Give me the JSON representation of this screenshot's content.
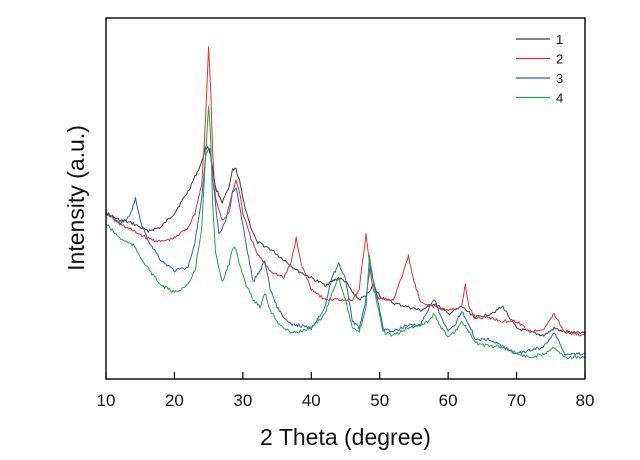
{
  "chart_data": {
    "type": "line",
    "xlabel": "2 Theta (degree)",
    "ylabel": "Intensity (a.u.)",
    "xlim": [
      10,
      80
    ],
    "ylim": [
      0,
      1
    ],
    "x_ticks": [
      10,
      20,
      30,
      40,
      50,
      60,
      70,
      80
    ],
    "x_tick_labels": [
      "10",
      "20",
      "30",
      "40",
      "50",
      "60",
      "70",
      "80"
    ],
    "y_ticks_labeled": false,
    "grid": false,
    "legend_position": "top-right",
    "series": [
      {
        "name": "1",
        "color": "#3f3f3f",
        "x": [
          10,
          12,
          14,
          16,
          18,
          20,
          22,
          23,
          24,
          24.5,
          25,
          25.3,
          25.6,
          26,
          27,
          28,
          28.5,
          29,
          29.5,
          30,
          31,
          32,
          34,
          36,
          38,
          40,
          42,
          43,
          44,
          45,
          46,
          47,
          48,
          49,
          50,
          52,
          54,
          56,
          58,
          60,
          62,
          64,
          66,
          68,
          70,
          72,
          74,
          75.5,
          77,
          80
        ],
        "y": [
          0.46,
          0.44,
          0.43,
          0.41,
          0.42,
          0.46,
          0.52,
          0.56,
          0.6,
          0.64,
          0.64,
          0.62,
          0.58,
          0.53,
          0.49,
          0.53,
          0.58,
          0.58,
          0.55,
          0.5,
          0.43,
          0.38,
          0.36,
          0.33,
          0.3,
          0.28,
          0.26,
          0.27,
          0.28,
          0.27,
          0.24,
          0.22,
          0.23,
          0.26,
          0.23,
          0.21,
          0.2,
          0.19,
          0.21,
          0.18,
          0.2,
          0.17,
          0.18,
          0.2,
          0.14,
          0.13,
          0.12,
          0.14,
          0.13,
          0.13
        ]
      },
      {
        "name": "2",
        "color": "#e8303a",
        "x": [
          10,
          12,
          14,
          16,
          18,
          20,
          22,
          23,
          24,
          24.5,
          25,
          25.3,
          25.6,
          26,
          27,
          28,
          28.5,
          29,
          29.5,
          30,
          31,
          32,
          34,
          36,
          37,
          37.8,
          38.5,
          40,
          42,
          44,
          46,
          47,
          48,
          48.5,
          49,
          50,
          52,
          53,
          54.2,
          55,
          56,
          58,
          60,
          62,
          62.5,
          63,
          64,
          66,
          68,
          70,
          72,
          74,
          75.5,
          77,
          80
        ],
        "y": [
          0.46,
          0.43,
          0.41,
          0.39,
          0.38,
          0.39,
          0.42,
          0.46,
          0.54,
          0.7,
          0.92,
          0.8,
          0.62,
          0.5,
          0.44,
          0.46,
          0.52,
          0.55,
          0.52,
          0.46,
          0.4,
          0.35,
          0.3,
          0.28,
          0.32,
          0.39,
          0.32,
          0.25,
          0.22,
          0.22,
          0.22,
          0.25,
          0.4,
          0.32,
          0.25,
          0.22,
          0.22,
          0.27,
          0.34,
          0.27,
          0.21,
          0.2,
          0.19,
          0.2,
          0.26,
          0.2,
          0.17,
          0.17,
          0.16,
          0.16,
          0.13,
          0.14,
          0.18,
          0.13,
          0.12
        ]
      },
      {
        "name": "3",
        "color": "#2b63b8",
        "x": [
          10,
          12,
          13.5,
          14.3,
          15,
          16,
          18,
          20,
          22,
          23,
          24,
          24.6,
          25.2,
          25.8,
          26.5,
          27.5,
          28.5,
          29,
          29.5,
          30.5,
          31.5,
          32.5,
          33.2,
          34,
          35,
          36,
          37,
          38,
          40,
          42,
          43,
          44,
          45,
          46,
          47,
          48,
          48.6,
          49.5,
          50.5,
          52,
          54,
          56,
          57,
          58,
          59,
          60,
          61,
          62,
          63,
          64,
          66,
          68,
          70,
          72,
          74,
          75.5,
          77,
          80
        ],
        "y": [
          0.46,
          0.43,
          0.45,
          0.5,
          0.44,
          0.39,
          0.33,
          0.3,
          0.31,
          0.38,
          0.5,
          0.62,
          0.64,
          0.52,
          0.4,
          0.44,
          0.52,
          0.53,
          0.48,
          0.37,
          0.27,
          0.3,
          0.33,
          0.25,
          0.2,
          0.17,
          0.15,
          0.15,
          0.14,
          0.2,
          0.28,
          0.32,
          0.28,
          0.16,
          0.14,
          0.22,
          0.31,
          0.24,
          0.14,
          0.13,
          0.15,
          0.15,
          0.19,
          0.22,
          0.17,
          0.13,
          0.15,
          0.19,
          0.15,
          0.11,
          0.11,
          0.09,
          0.07,
          0.08,
          0.09,
          0.13,
          0.07,
          0.07
        ]
      },
      {
        "name": "4",
        "color": "#1fa24b",
        "x": [
          10,
          12,
          14,
          16,
          18,
          20,
          22,
          23,
          24,
          24.5,
          25,
          25.3,
          25.6,
          26,
          27,
          28,
          28.5,
          29,
          29.5,
          30.5,
          31.5,
          32.5,
          33.2,
          34,
          35,
          36,
          37,
          38,
          40,
          42,
          43,
          44,
          45,
          46,
          47,
          48,
          48.5,
          49.5,
          50.5,
          52,
          54,
          56,
          57,
          58,
          59,
          60,
          61,
          62,
          63,
          64,
          66,
          68,
          70,
          72,
          74,
          75.5,
          77,
          80
        ],
        "y": [
          0.43,
          0.39,
          0.37,
          0.31,
          0.26,
          0.24,
          0.26,
          0.3,
          0.42,
          0.6,
          0.76,
          0.66,
          0.48,
          0.35,
          0.27,
          0.32,
          0.36,
          0.36,
          0.32,
          0.26,
          0.22,
          0.2,
          0.24,
          0.19,
          0.16,
          0.14,
          0.13,
          0.13,
          0.14,
          0.18,
          0.24,
          0.28,
          0.22,
          0.14,
          0.13,
          0.2,
          0.34,
          0.22,
          0.13,
          0.12,
          0.14,
          0.15,
          0.16,
          0.18,
          0.14,
          0.12,
          0.13,
          0.16,
          0.13,
          0.1,
          0.09,
          0.09,
          0.07,
          0.06,
          0.07,
          0.09,
          0.06,
          0.06
        ]
      }
    ]
  }
}
